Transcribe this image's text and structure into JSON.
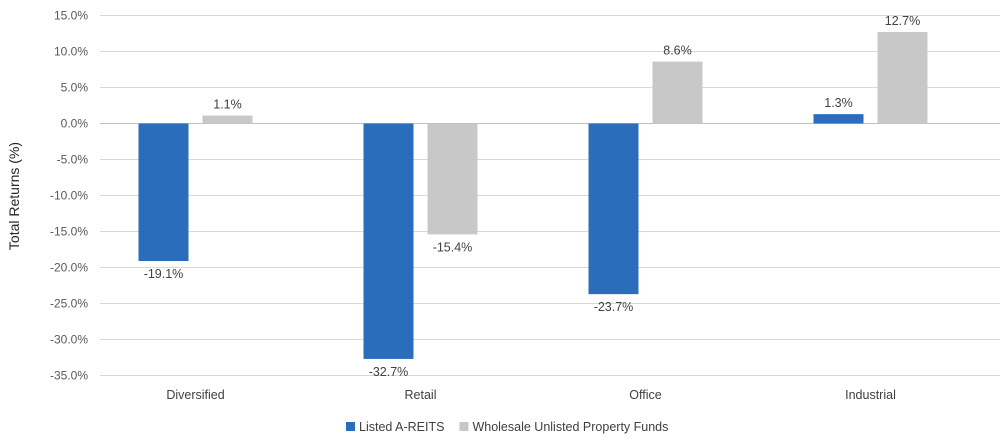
{
  "chart_data": {
    "type": "bar",
    "categories": [
      "Diversified",
      "Retail",
      "Office",
      "Industrial"
    ],
    "series": [
      {
        "name": "Listed A-REITS",
        "values": [
          -19.1,
          -32.7,
          -23.7,
          1.3
        ],
        "color": "#2a6ebb"
      },
      {
        "name": "Wholesale Unlisted Property Funds",
        "values": [
          1.1,
          -15.4,
          8.6,
          12.7
        ],
        "color": "#c8c8c8"
      }
    ],
    "data_labels": [
      [
        "-19.1%",
        "-32.7%",
        "-23.7%",
        "1.3%"
      ],
      [
        "1.1%",
        "-15.4%",
        "8.6%",
        "12.7%"
      ]
    ],
    "ylabel": "Total Returns (%)",
    "xlabel": "",
    "ylim": [
      -35,
      15
    ],
    "yticks": [
      15,
      10,
      5,
      0,
      -5,
      -10,
      -15,
      -20,
      -25,
      -30,
      -35
    ],
    "ytick_labels": [
      "15.0%",
      "10.0%",
      "5.0%",
      "0.0%",
      "-5.0%",
      "-10.0%",
      "-15.0%",
      "-20.0%",
      "-25.0%",
      "-30.0%",
      "-35.0%"
    ],
    "grid": true,
    "legend_position": "bottom"
  }
}
